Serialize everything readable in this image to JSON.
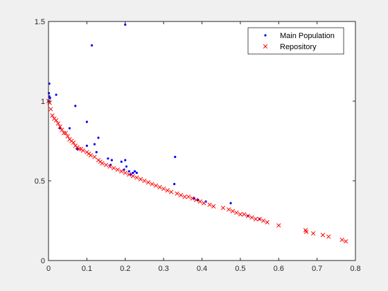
{
  "chart_data": {
    "type": "scatter",
    "title": "",
    "xlabel": "",
    "ylabel": "",
    "xlim": [
      0,
      0.8
    ],
    "ylim": [
      0,
      1.5
    ],
    "xticks": [
      "0",
      "0.1",
      "0.2",
      "0.3",
      "0.4",
      "0.5",
      "0.6",
      "0.7",
      "0.8"
    ],
    "yticks": [
      "0",
      "0.5",
      "1",
      "1.5"
    ],
    "grid": false,
    "legend_position": "top-right",
    "series": [
      {
        "name": "Main Population",
        "marker": "dot",
        "color": "#0000ff",
        "points": [
          [
            0.0,
            1.0
          ],
          [
            0.001,
            1.05
          ],
          [
            0.002,
            1.03
          ],
          [
            0.002,
            1.11
          ],
          [
            0.004,
            1.02
          ],
          [
            0.02,
            1.04
          ],
          [
            0.03,
            0.83
          ],
          [
            0.055,
            0.83
          ],
          [
            0.07,
            0.97
          ],
          [
            0.075,
            0.7
          ],
          [
            0.1,
            0.87
          ],
          [
            0.1,
            0.72
          ],
          [
            0.113,
            1.35
          ],
          [
            0.12,
            0.73
          ],
          [
            0.125,
            0.68
          ],
          [
            0.13,
            0.77
          ],
          [
            0.155,
            0.64
          ],
          [
            0.162,
            0.6
          ],
          [
            0.165,
            0.63
          ],
          [
            0.19,
            0.62
          ],
          [
            0.197,
            0.57
          ],
          [
            0.2,
            1.48
          ],
          [
            0.2,
            0.63
          ],
          [
            0.203,
            0.59
          ],
          [
            0.21,
            0.56
          ],
          [
            0.215,
            0.54
          ],
          [
            0.22,
            0.55
          ],
          [
            0.225,
            0.56
          ],
          [
            0.23,
            0.55
          ],
          [
            0.328,
            0.48
          ],
          [
            0.33,
            0.65
          ],
          [
            0.38,
            0.39
          ],
          [
            0.39,
            0.38
          ],
          [
            0.41,
            0.37
          ],
          [
            0.475,
            0.36
          ],
          [
            0.52,
            0.28
          ],
          [
            0.55,
            0.26
          ]
        ]
      },
      {
        "name": "Repository",
        "marker": "x",
        "color": "#ff0000",
        "points": [
          [
            0.0,
            1.0
          ],
          [
            0.003,
            0.99
          ],
          [
            0.006,
            0.95
          ],
          [
            0.01,
            0.91
          ],
          [
            0.015,
            0.89
          ],
          [
            0.02,
            0.88
          ],
          [
            0.025,
            0.86
          ],
          [
            0.03,
            0.84
          ],
          [
            0.035,
            0.82
          ],
          [
            0.04,
            0.8
          ],
          [
            0.045,
            0.8
          ],
          [
            0.05,
            0.78
          ],
          [
            0.055,
            0.76
          ],
          [
            0.06,
            0.75
          ],
          [
            0.065,
            0.74
          ],
          [
            0.07,
            0.72
          ],
          [
            0.075,
            0.71
          ],
          [
            0.08,
            0.7
          ],
          [
            0.085,
            0.7
          ],
          [
            0.09,
            0.69
          ],
          [
            0.1,
            0.68
          ],
          [
            0.105,
            0.67
          ],
          [
            0.11,
            0.66
          ],
          [
            0.12,
            0.65
          ],
          [
            0.13,
            0.63
          ],
          [
            0.135,
            0.62
          ],
          [
            0.14,
            0.61
          ],
          [
            0.15,
            0.6
          ],
          [
            0.16,
            0.59
          ],
          [
            0.17,
            0.58
          ],
          [
            0.18,
            0.57
          ],
          [
            0.19,
            0.56
          ],
          [
            0.2,
            0.55
          ],
          [
            0.21,
            0.54
          ],
          [
            0.22,
            0.53
          ],
          [
            0.23,
            0.52
          ],
          [
            0.24,
            0.51
          ],
          [
            0.25,
            0.5
          ],
          [
            0.26,
            0.49
          ],
          [
            0.27,
            0.48
          ],
          [
            0.28,
            0.47
          ],
          [
            0.29,
            0.46
          ],
          [
            0.3,
            0.45
          ],
          [
            0.31,
            0.44
          ],
          [
            0.32,
            0.43
          ],
          [
            0.335,
            0.42
          ],
          [
            0.345,
            0.41
          ],
          [
            0.355,
            0.4
          ],
          [
            0.365,
            0.4
          ],
          [
            0.375,
            0.39
          ],
          [
            0.385,
            0.38
          ],
          [
            0.395,
            0.37
          ],
          [
            0.405,
            0.36
          ],
          [
            0.42,
            0.35
          ],
          [
            0.43,
            0.34
          ],
          [
            0.455,
            0.33
          ],
          [
            0.47,
            0.32
          ],
          [
            0.48,
            0.31
          ],
          [
            0.49,
            0.3
          ],
          [
            0.5,
            0.29
          ],
          [
            0.51,
            0.29
          ],
          [
            0.52,
            0.28
          ],
          [
            0.53,
            0.27
          ],
          [
            0.54,
            0.26
          ],
          [
            0.55,
            0.26
          ],
          [
            0.56,
            0.25
          ],
          [
            0.57,
            0.24
          ],
          [
            0.6,
            0.22
          ],
          [
            0.67,
            0.19
          ],
          [
            0.672,
            0.18
          ],
          [
            0.69,
            0.17
          ],
          [
            0.715,
            0.16
          ],
          [
            0.73,
            0.15
          ],
          [
            0.765,
            0.13
          ],
          [
            0.775,
            0.12
          ]
        ]
      }
    ]
  }
}
